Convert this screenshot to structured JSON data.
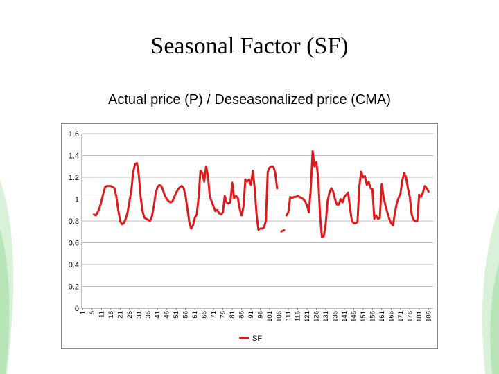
{
  "slide": {
    "title": "Seasonal Factor (SF)",
    "subtitle": "Actual price (P) / Deseasonalized price (CMA)"
  },
  "colors": {
    "series": "#e0191b",
    "grid": "#bdbdbd",
    "axis": "#808080",
    "decor_green": "#8fd38f"
  },
  "chart_data": {
    "type": "line",
    "title": "",
    "xlabel": "",
    "ylabel": "",
    "ylim": [
      0,
      1.6
    ],
    "yticks": [
      "0",
      "0.2",
      "0.4",
      "0.6",
      "0.8",
      "1",
      "1.2",
      "1.4",
      "1.6"
    ],
    "x_range": [
      1,
      188
    ],
    "xtick_labels": [
      "1",
      "6",
      "11",
      "16",
      "21",
      "26",
      "31",
      "36",
      "41",
      "46",
      "51",
      "56",
      "61",
      "66",
      "71",
      "76",
      "81",
      "86",
      "91",
      "96",
      "101",
      "106",
      "111",
      "116",
      "121",
      "126",
      "131",
      "136",
      "141",
      "146",
      "151",
      "156",
      "161",
      "166",
      "171",
      "176",
      "181",
      "186"
    ],
    "grid": "horizontal",
    "legend": "bottom",
    "series": [
      {
        "name": "SF",
        "points": [
          [
            7,
            0.86
          ],
          [
            8,
            0.85
          ],
          [
            9,
            0.88
          ],
          [
            10,
            0.92
          ],
          [
            11,
            0.98
          ],
          [
            12,
            1.05
          ],
          [
            13,
            1.11
          ],
          [
            14,
            1.12
          ],
          [
            15,
            1.12
          ],
          [
            16,
            1.12
          ],
          [
            17,
            1.11
          ],
          [
            18,
            1.1
          ],
          [
            19,
            1.02
          ],
          [
            20,
            0.9
          ],
          [
            21,
            0.8
          ],
          [
            22,
            0.77
          ],
          [
            23,
            0.78
          ],
          [
            24,
            0.82
          ],
          [
            25,
            0.88
          ],
          [
            26,
            0.98
          ],
          [
            27,
            1.08
          ],
          [
            28,
            1.25
          ],
          [
            29,
            1.32
          ],
          [
            30,
            1.33
          ],
          [
            31,
            1.22
          ],
          [
            32,
            1.02
          ],
          [
            33,
            0.89
          ],
          [
            34,
            0.83
          ],
          [
            35,
            0.82
          ],
          [
            36,
            0.81
          ],
          [
            37,
            0.8
          ],
          [
            38,
            0.84
          ],
          [
            39,
            0.93
          ],
          [
            40,
            1.05
          ],
          [
            41,
            1.11
          ],
          [
            42,
            1.13
          ],
          [
            43,
            1.12
          ],
          [
            44,
            1.08
          ],
          [
            45,
            1.03
          ],
          [
            46,
            1.0
          ],
          [
            47,
            0.98
          ],
          [
            48,
            0.97
          ],
          [
            49,
            0.98
          ],
          [
            50,
            1.02
          ],
          [
            51,
            1.06
          ],
          [
            52,
            1.09
          ],
          [
            53,
            1.11
          ],
          [
            54,
            1.12
          ],
          [
            55,
            1.1
          ],
          [
            56,
            1.03
          ],
          [
            57,
            0.91
          ],
          [
            58,
            0.79
          ],
          [
            59,
            0.73
          ],
          [
            60,
            0.76
          ],
          [
            61,
            0.83
          ],
          [
            62,
            0.86
          ],
          [
            63,
            1.02
          ],
          [
            64,
            1.26
          ],
          [
            65,
            1.24
          ],
          [
            66,
            1.16
          ],
          [
            67,
            1.3
          ],
          [
            68,
            1.22
          ],
          [
            69,
            1.02
          ],
          [
            70,
            0.98
          ],
          [
            71,
            0.93
          ],
          [
            72,
            0.89
          ],
          [
            73,
            0.9
          ],
          [
            74,
            0.87
          ],
          [
            75,
            0.86
          ],
          [
            76,
            0.88
          ],
          [
            77,
            1.03
          ],
          [
            78,
            0.97
          ],
          [
            79,
            0.96
          ],
          [
            80,
            0.97
          ],
          [
            81,
            1.15
          ],
          [
            82,
            1.01
          ],
          [
            83,
            1.03
          ],
          [
            84,
            1.01
          ],
          [
            85,
            0.91
          ],
          [
            86,
            0.85
          ],
          [
            87,
            0.93
          ],
          [
            88,
            1.18
          ],
          [
            89,
            1.16
          ],
          [
            90,
            1.18
          ],
          [
            91,
            1.13
          ],
          [
            92,
            1.26
          ],
          [
            93,
            1.1
          ],
          [
            94,
            0.86
          ],
          [
            95,
            0.72
          ],
          [
            96,
            0.73
          ],
          [
            97,
            0.73
          ],
          [
            98,
            0.74
          ],
          [
            99,
            0.8
          ],
          [
            100,
            1.25
          ],
          [
            101,
            1.29
          ],
          [
            102,
            1.3
          ],
          [
            103,
            1.3
          ],
          [
            104,
            1.24
          ],
          [
            105,
            1.1
          ],
          null,
          [
            108,
            0.71
          ],
          null,
          [
            110,
            0.85
          ],
          [
            111,
            0.88
          ],
          [
            112,
            1.02
          ],
          [
            113,
            1.01
          ],
          [
            114,
            1.02
          ],
          [
            115,
            1.02
          ],
          [
            116,
            1.03
          ],
          [
            117,
            1.02
          ],
          [
            118,
            1.01
          ],
          [
            119,
            1.0
          ],
          [
            120,
            0.98
          ],
          [
            121,
            0.94
          ],
          [
            122,
            0.88
          ],
          [
            123,
            1.09
          ],
          [
            124,
            1.44
          ],
          [
            125,
            1.3
          ],
          [
            126,
            1.34
          ],
          [
            127,
            1.2
          ],
          [
            128,
            0.85
          ],
          [
            129,
            0.65
          ],
          [
            130,
            0.66
          ],
          [
            131,
            0.77
          ],
          [
            132,
            0.98
          ],
          [
            133,
            1.06
          ],
          [
            134,
            1.1
          ],
          [
            135,
            1.07
          ],
          [
            136,
            1.0
          ],
          [
            137,
            0.95
          ],
          [
            138,
            0.95
          ],
          [
            139,
            1.0
          ],
          [
            140,
            0.97
          ],
          [
            141,
            1.02
          ],
          [
            142,
            1.04
          ],
          [
            143,
            1.06
          ],
          [
            144,
            0.92
          ],
          [
            145,
            0.8
          ],
          [
            146,
            0.78
          ],
          [
            147,
            0.78
          ],
          [
            148,
            0.79
          ],
          [
            149,
            1.12
          ],
          [
            150,
            1.25
          ],
          [
            151,
            1.2
          ],
          [
            152,
            1.21
          ],
          [
            153,
            1.13
          ],
          [
            154,
            1.16
          ],
          [
            155,
            1.1
          ],
          [
            156,
            1.09
          ],
          [
            157,
            0.82
          ],
          [
            158,
            0.85
          ],
          [
            159,
            0.82
          ],
          [
            160,
            0.83
          ],
          [
            161,
            1.14
          ],
          [
            162,
            1.02
          ],
          [
            163,
            0.94
          ],
          [
            164,
            0.88
          ],
          [
            165,
            0.82
          ],
          [
            166,
            0.78
          ],
          [
            167,
            0.76
          ],
          [
            168,
            0.87
          ],
          [
            169,
            0.96
          ],
          [
            170,
            1.01
          ],
          [
            171,
            1.05
          ],
          [
            172,
            1.17
          ],
          [
            173,
            1.24
          ],
          [
            174,
            1.2
          ],
          [
            175,
            1.1
          ],
          [
            176,
            1.02
          ],
          [
            177,
            0.86
          ],
          [
            178,
            0.81
          ],
          [
            179,
            0.8
          ],
          [
            180,
            0.8
          ],
          [
            181,
            1.04
          ],
          [
            182,
            1.02
          ],
          [
            183,
            1.06
          ],
          [
            184,
            1.12
          ],
          [
            185,
            1.1
          ],
          [
            186,
            1.07
          ]
        ]
      }
    ]
  }
}
